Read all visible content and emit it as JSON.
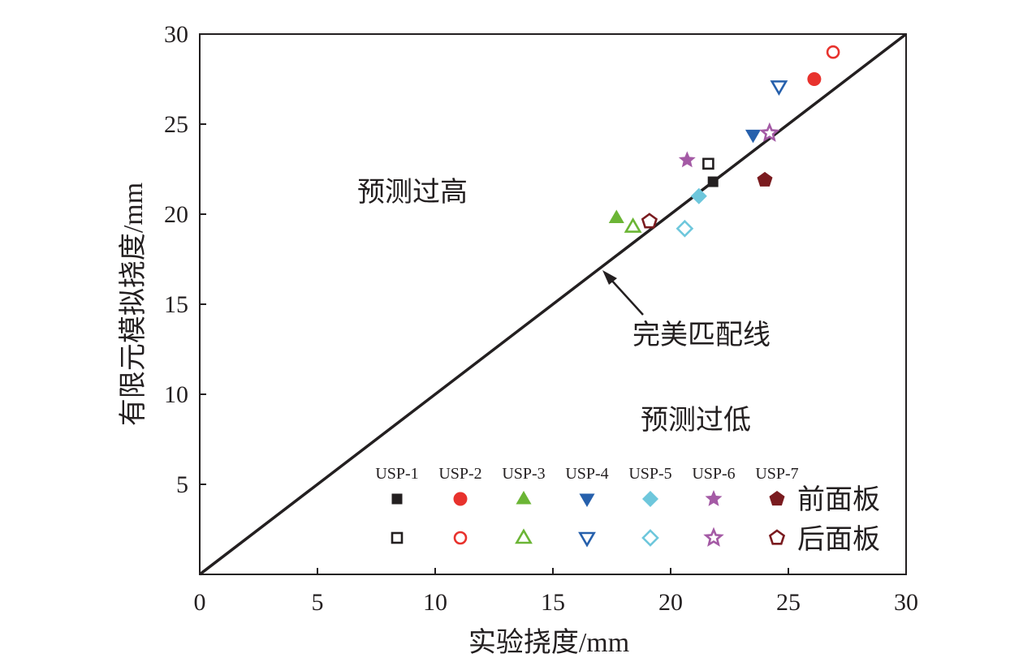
{
  "chart_data": {
    "type": "scatter",
    "xlabel": "实验挠度/mm",
    "ylabel": "有限元模拟挠度/mm",
    "xlim": [
      0,
      30
    ],
    "ylim": [
      0,
      30
    ],
    "x_ticks": [
      "0",
      "5",
      "10",
      "15",
      "20",
      "25",
      "30"
    ],
    "y_ticks": [
      "5",
      "10",
      "15",
      "20",
      "25",
      "30"
    ],
    "grid": false,
    "reference_line": {
      "label": "完美匹配线",
      "x": [
        0,
        30
      ],
      "y": [
        0,
        30
      ]
    },
    "region_labels": {
      "upper": "预测过高",
      "lower": "预测过低"
    },
    "legend": {
      "placement": "bottom-right",
      "row_labels": {
        "filled": "前面板",
        "hollow": "后面板"
      }
    },
    "series": [
      {
        "name": "USP-1",
        "color": "#231f20",
        "marker": "square",
        "front": {
          "x": 21.8,
          "y": 21.8
        },
        "back": {
          "x": 21.6,
          "y": 22.8
        }
      },
      {
        "name": "USP-2",
        "color": "#e8322d",
        "marker": "circle",
        "front": {
          "x": 26.1,
          "y": 27.5
        },
        "back": {
          "x": 26.9,
          "y": 29.0
        }
      },
      {
        "name": "USP-3",
        "color": "#6bb535",
        "marker": "triangle-up",
        "front": {
          "x": 17.7,
          "y": 19.8
        },
        "back": {
          "x": 18.4,
          "y": 19.3
        }
      },
      {
        "name": "USP-4",
        "color": "#2660ac",
        "marker": "triangle-down",
        "front": {
          "x": 23.5,
          "y": 24.4
        },
        "back": {
          "x": 24.6,
          "y": 27.1
        }
      },
      {
        "name": "USP-5",
        "color": "#6ec7dc",
        "marker": "diamond",
        "front": {
          "x": 21.2,
          "y": 21.0
        },
        "back": {
          "x": 20.6,
          "y": 19.2
        }
      },
      {
        "name": "USP-6",
        "color": "#a45aa5",
        "marker": "star",
        "front": {
          "x": 20.7,
          "y": 23.0
        },
        "back": {
          "x": 24.2,
          "y": 24.5
        }
      },
      {
        "name": "USP-7",
        "color": "#7a1b1f",
        "marker": "pentagon",
        "front": {
          "x": 24.0,
          "y": 21.9
        },
        "back": {
          "x": 19.1,
          "y": 19.6
        }
      }
    ]
  }
}
